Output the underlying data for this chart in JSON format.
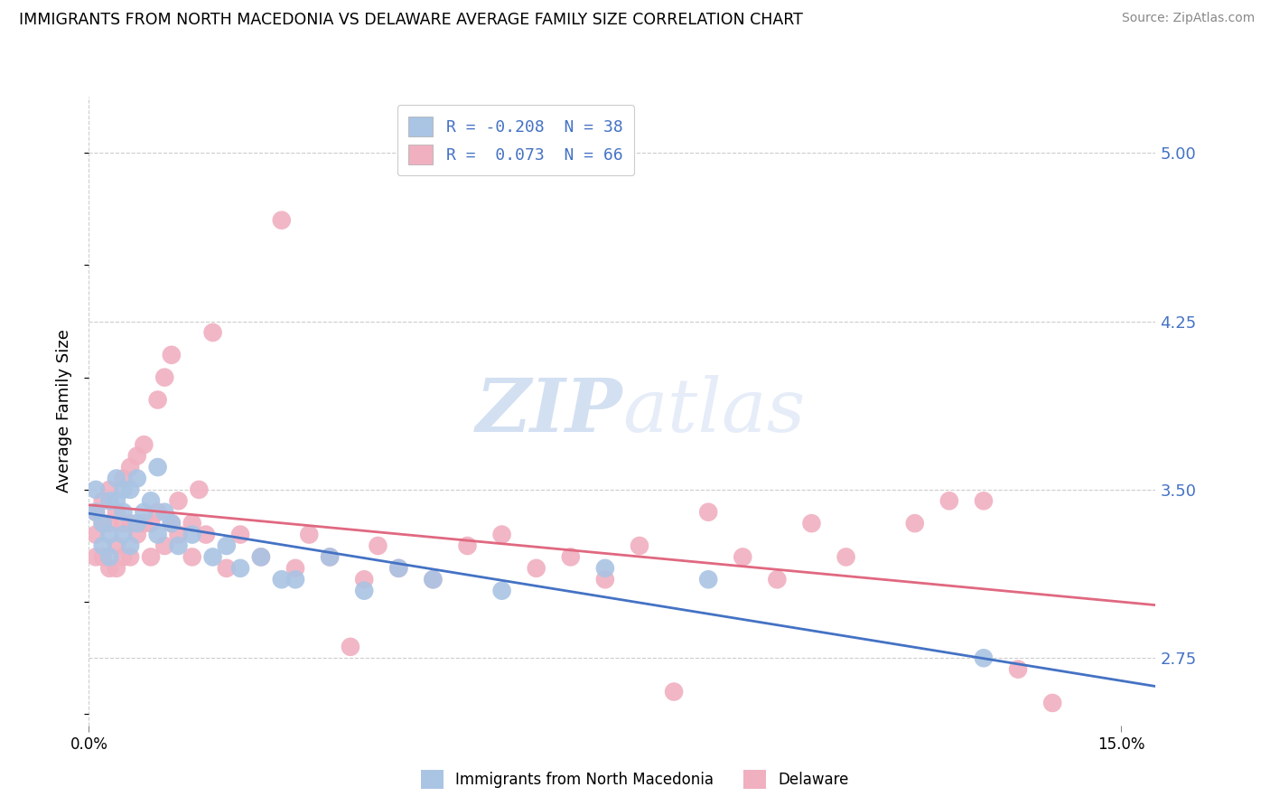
{
  "title": "IMMIGRANTS FROM NORTH MACEDONIA VS DELAWARE AVERAGE FAMILY SIZE CORRELATION CHART",
  "source": "Source: ZipAtlas.com",
  "ylabel": "Average Family Size",
  "xlim": [
    0.0,
    0.155
  ],
  "ylim": [
    2.45,
    5.25
  ],
  "yticks": [
    2.75,
    3.5,
    4.25,
    5.0
  ],
  "xticks": [
    0.0,
    0.15
  ],
  "xticklabels": [
    "0.0%",
    "15.0%"
  ],
  "grid_color": "#cccccc",
  "bg_color": "#ffffff",
  "blue_scatter_color": "#aac4e4",
  "blue_line_color": "#4472c4",
  "pink_scatter_color": "#f0b0c0",
  "pink_line_color": "#e06880",
  "legend1": [
    {
      "color": "#aac4e4",
      "text": "R = -0.208  N = 38"
    },
    {
      "color": "#f0b0c0",
      "text": "R =  0.073  N = 66"
    }
  ],
  "legend2_labels": [
    "Immigrants from North Macedonia",
    "Delaware"
  ],
  "blue_x": [
    0.001,
    0.001,
    0.002,
    0.002,
    0.003,
    0.003,
    0.003,
    0.004,
    0.004,
    0.005,
    0.005,
    0.005,
    0.006,
    0.006,
    0.007,
    0.007,
    0.008,
    0.009,
    0.01,
    0.01,
    0.011,
    0.012,
    0.013,
    0.015,
    0.018,
    0.02,
    0.022,
    0.025,
    0.028,
    0.03,
    0.035,
    0.04,
    0.045,
    0.05,
    0.06,
    0.075,
    0.09,
    0.13
  ],
  "blue_y": [
    3.4,
    3.5,
    3.35,
    3.25,
    3.45,
    3.3,
    3.2,
    3.45,
    3.55,
    3.5,
    3.4,
    3.3,
    3.5,
    3.25,
    3.55,
    3.35,
    3.4,
    3.45,
    3.6,
    3.3,
    3.4,
    3.35,
    3.25,
    3.3,
    3.2,
    3.25,
    3.15,
    3.2,
    3.1,
    3.1,
    3.2,
    3.05,
    3.15,
    3.1,
    3.05,
    3.15,
    3.1,
    2.75
  ],
  "pink_x": [
    0.001,
    0.001,
    0.001,
    0.002,
    0.002,
    0.002,
    0.003,
    0.003,
    0.003,
    0.004,
    0.004,
    0.004,
    0.005,
    0.005,
    0.005,
    0.006,
    0.006,
    0.006,
    0.007,
    0.007,
    0.008,
    0.008,
    0.009,
    0.009,
    0.01,
    0.01,
    0.011,
    0.011,
    0.012,
    0.012,
    0.013,
    0.013,
    0.015,
    0.015,
    0.016,
    0.017,
    0.018,
    0.02,
    0.022,
    0.025,
    0.028,
    0.03,
    0.032,
    0.035,
    0.038,
    0.04,
    0.042,
    0.045,
    0.05,
    0.055,
    0.06,
    0.065,
    0.07,
    0.075,
    0.08,
    0.085,
    0.09,
    0.095,
    0.1,
    0.105,
    0.11,
    0.12,
    0.125,
    0.13,
    0.135,
    0.14
  ],
  "pink_y": [
    3.4,
    3.3,
    3.2,
    3.45,
    3.35,
    3.2,
    3.5,
    3.35,
    3.15,
    3.4,
    3.25,
    3.15,
    3.55,
    3.35,
    3.2,
    3.6,
    3.35,
    3.2,
    3.65,
    3.3,
    3.7,
    3.35,
    3.35,
    3.2,
    3.9,
    3.4,
    4.0,
    3.25,
    3.35,
    4.1,
    3.45,
    3.3,
    3.35,
    3.2,
    3.5,
    3.3,
    4.2,
    3.15,
    3.3,
    3.2,
    4.7,
    3.15,
    3.3,
    3.2,
    2.8,
    3.1,
    3.25,
    3.15,
    3.1,
    3.25,
    3.3,
    3.15,
    3.2,
    3.1,
    3.25,
    2.6,
    3.4,
    3.2,
    3.1,
    3.35,
    3.2,
    3.35,
    3.45,
    3.45,
    2.7,
    2.55
  ]
}
